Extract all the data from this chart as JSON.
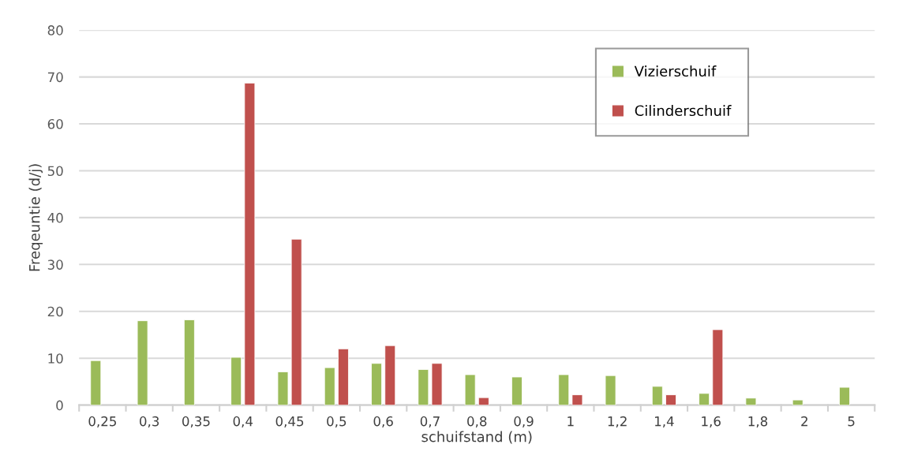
{
  "chart_data": {
    "type": "bar",
    "xlabel": "schuifstand (m)",
    "ylabel": "Freqeuntie (d/j)",
    "categories": [
      "0,25",
      "0,3",
      "0,35",
      "0,4",
      "0,45",
      "0,5",
      "0,6",
      "0,7",
      "0,8",
      "0,9",
      "1",
      "1,2",
      "1,4",
      "1,6",
      "1,8",
      "2",
      "5"
    ],
    "series": [
      {
        "name": "Vizierschuif",
        "color": "#9bbb59",
        "values": [
          9.5,
          18,
          18.2,
          10.2,
          7.1,
          8,
          8.9,
          7.6,
          6.5,
          6,
          6.5,
          6.3,
          4,
          2.5,
          1.5,
          1.1,
          3.8
        ]
      },
      {
        "name": "Cilinderschuif",
        "color": "#c0504d",
        "values": [
          null,
          null,
          null,
          68.7,
          35.4,
          12,
          12.7,
          8.9,
          1.6,
          null,
          2.2,
          null,
          2.2,
          16.1,
          null,
          null,
          null
        ]
      }
    ],
    "ylim": [
      0,
      80
    ],
    "yticks": [
      0,
      10,
      20,
      30,
      40,
      50,
      60,
      70,
      80
    ],
    "grid": "y",
    "legend": "top right"
  }
}
